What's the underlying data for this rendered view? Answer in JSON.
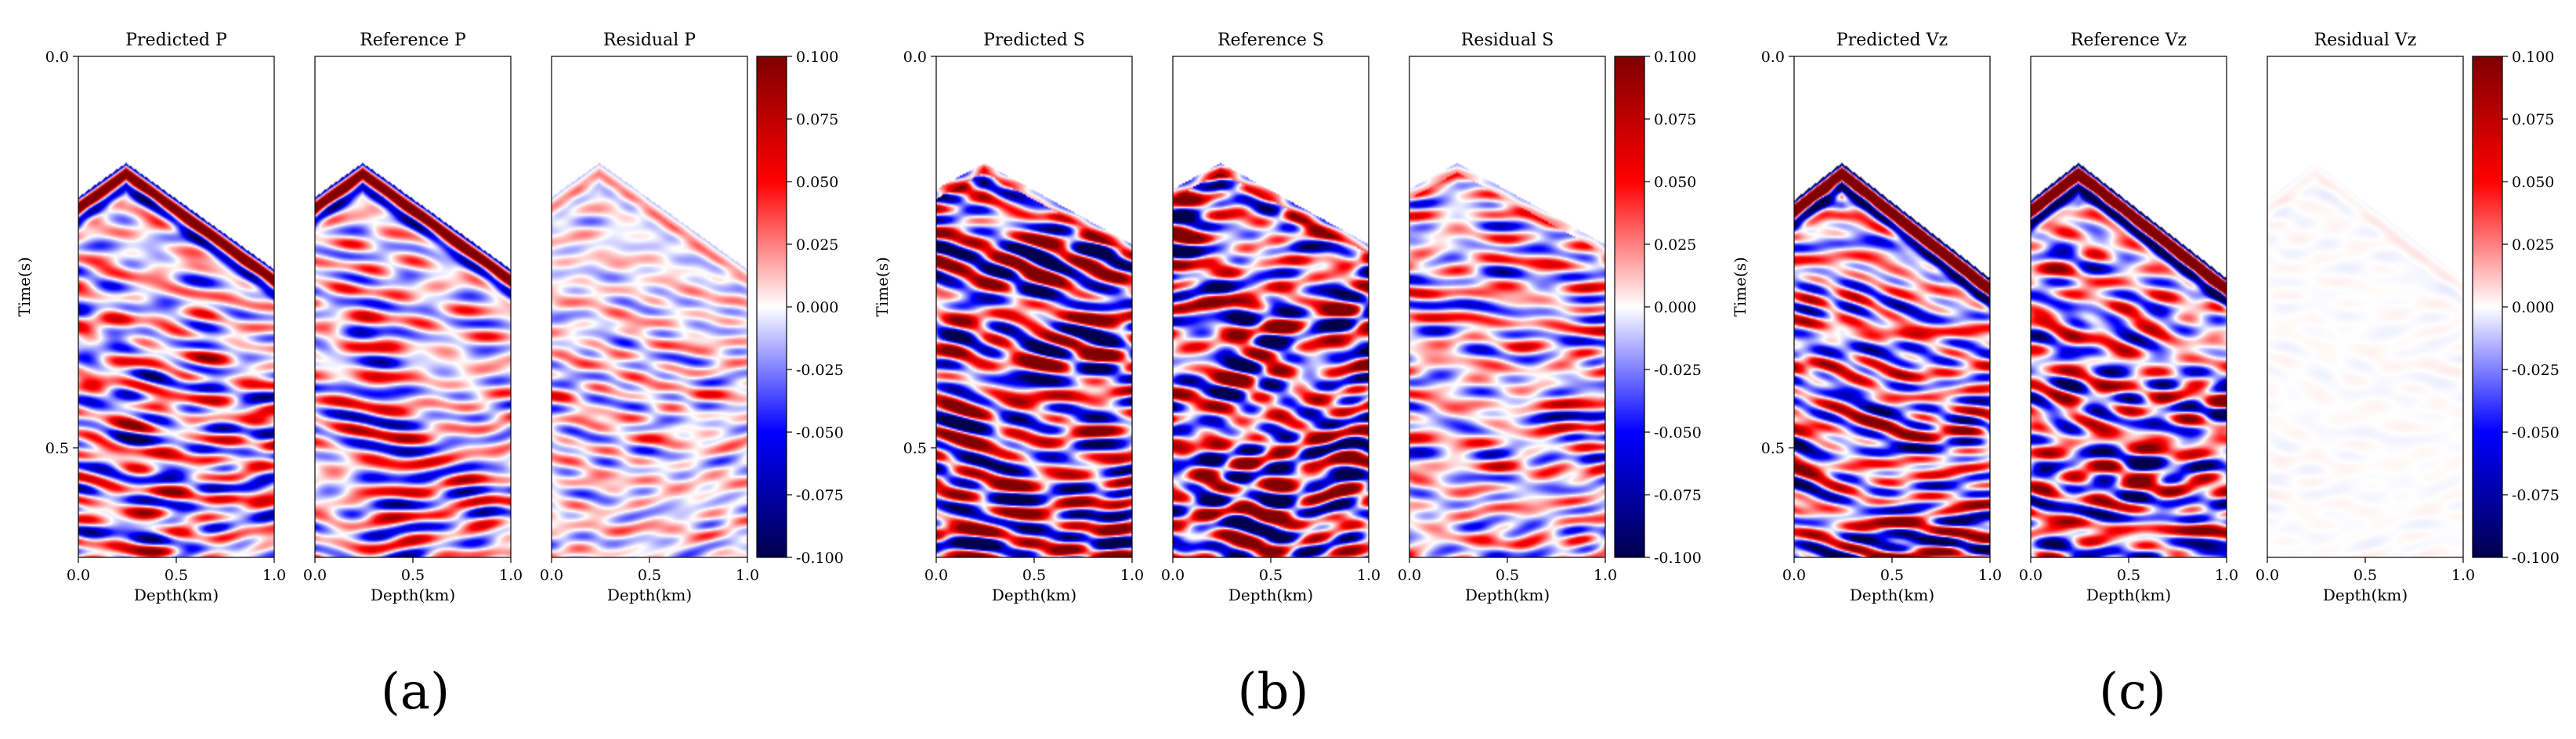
{
  "figure": {
    "group_labels": [
      "(a)",
      "(b)",
      "(c)"
    ]
  },
  "chart_data": [
    {
      "type": "heatmap",
      "group": "(a)",
      "panels": [
        "Predicted P",
        "Reference P",
        "Residual P"
      ],
      "xlabel": "Depth(km)",
      "ylabel": "Time(s)",
      "xticks": [
        "0.0",
        "0.5",
        "1.0"
      ],
      "yticks": [
        "0.0",
        "0.5"
      ],
      "xlim": [
        0.0,
        1.0
      ],
      "ylim": [
        0.0,
        0.64
      ],
      "colorbar": {
        "colormap": "seismic",
        "vmin": -0.1,
        "vmax": 0.1,
        "ticks": [
          "0.100",
          "0.075",
          "0.050",
          "0.025",
          "0.000",
          "-0.025",
          "-0.050",
          "-0.075",
          "-0.100"
        ]
      }
    },
    {
      "type": "heatmap",
      "group": "(b)",
      "panels": [
        "Predicted S",
        "Reference S",
        "Residual S"
      ],
      "xlabel": "Depth(km)",
      "ylabel": "Time(s)",
      "xticks": [
        "0.0",
        "0.5",
        "1.0"
      ],
      "yticks": [
        "0.0",
        "0.5"
      ],
      "xlim": [
        0.0,
        1.0
      ],
      "ylim": [
        0.0,
        0.64
      ],
      "colorbar": {
        "colormap": "seismic",
        "vmin": -0.1,
        "vmax": 0.1,
        "ticks": [
          "0.100",
          "0.075",
          "0.050",
          "0.025",
          "0.000",
          "-0.025",
          "-0.050",
          "-0.075",
          "-0.100"
        ]
      }
    },
    {
      "type": "heatmap",
      "group": "(c)",
      "panels": [
        "Predicted Vz",
        "Reference Vz",
        "Residual Vz"
      ],
      "xlabel": "Depth(km)",
      "ylabel": "Time(s)",
      "xticks": [
        "0.0",
        "0.5",
        "1.0"
      ],
      "yticks": [
        "0.0",
        "0.5"
      ],
      "xlim": [
        0.0,
        1.0
      ],
      "ylim": [
        0.0,
        0.64
      ],
      "colorbar": {
        "colormap": "seismic",
        "vmin": -0.1,
        "vmax": 0.1,
        "ticks": [
          "0.100",
          "0.075",
          "0.050",
          "0.025",
          "0.000",
          "-0.025",
          "-0.050",
          "-0.075",
          "-0.100"
        ]
      }
    }
  ]
}
